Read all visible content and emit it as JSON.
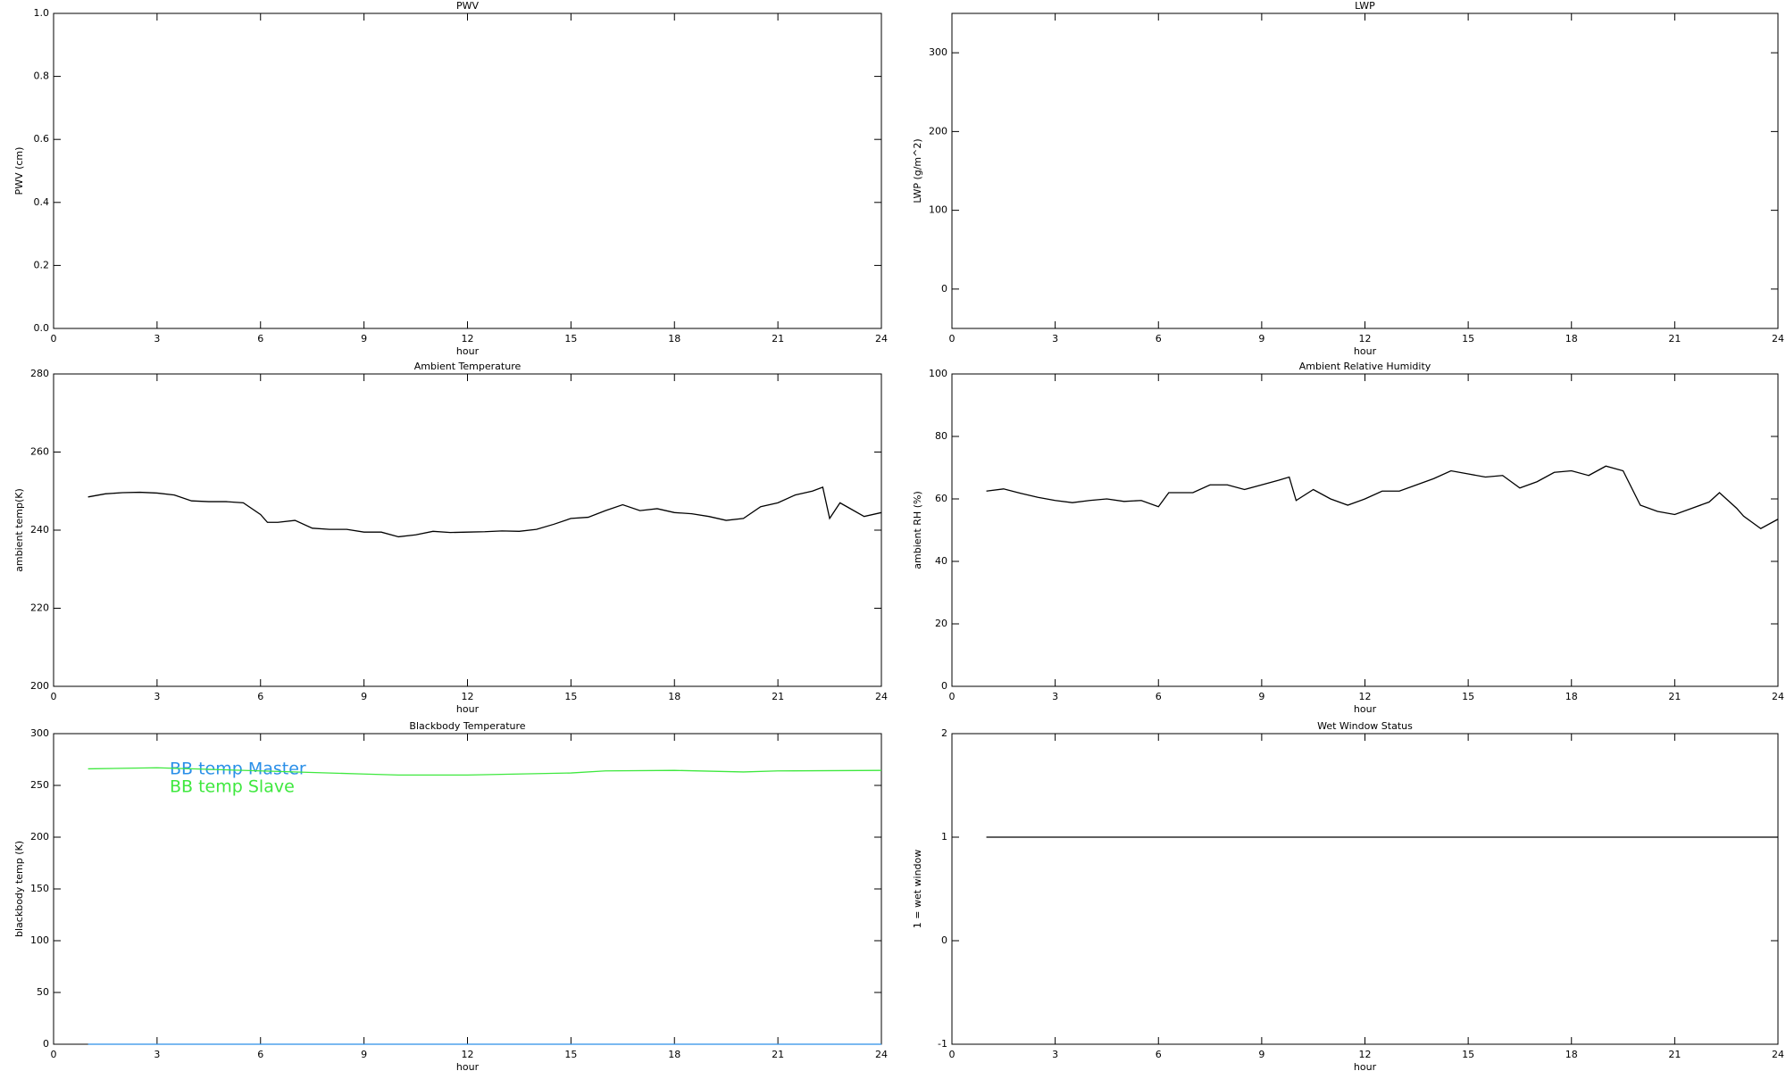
{
  "chart_data": [
    {
      "type": "line",
      "title": "PWV",
      "xlabel": "hour",
      "ylabel": "PWV (cm)",
      "xlim": [
        0,
        24
      ],
      "xticks": [
        0,
        3,
        6,
        9,
        12,
        15,
        18,
        21,
        24
      ],
      "ylim": [
        0,
        1
      ],
      "yticks": [
        {
          "value": 0,
          "label": "0.0"
        },
        {
          "value": 0.2,
          "label": "0.2"
        },
        {
          "value": 0.4,
          "label": "0.4"
        },
        {
          "value": 0.6,
          "label": "0.6"
        },
        {
          "value": 0.8,
          "label": "0.8"
        },
        {
          "value": 1,
          "label": "1.0"
        }
      ]
    },
    {
      "type": "line",
      "title": "LWP",
      "xlabel": "hour",
      "ylabel": "LWP (g/m^2)",
      "xlim": [
        0,
        24
      ],
      "xticks": [
        0,
        3,
        6,
        9,
        12,
        15,
        18,
        21,
        24
      ],
      "ylim": [
        -50,
        350
      ],
      "yticks": [
        0,
        100,
        200,
        300
      ]
    },
    {
      "type": "line",
      "title": "Ambient Temperature",
      "xlabel": "hour",
      "ylabel": "ambient temp(K)",
      "xlim": [
        0,
        24
      ],
      "xticks": [
        0,
        3,
        6,
        9,
        12,
        15,
        18,
        21,
        24
      ],
      "ylim": [
        200,
        280
      ],
      "yticks": [
        200,
        220,
        240,
        260,
        280
      ],
      "x": [
        1,
        1.5,
        2,
        2.5,
        3,
        3.5,
        4,
        4.5,
        5,
        5.5,
        6,
        6.2,
        6.5,
        7,
        7.5,
        8,
        8.5,
        9,
        9.5,
        10,
        10.5,
        11,
        11.5,
        12,
        12.5,
        13,
        13.5,
        14,
        14.5,
        15,
        15.5,
        16,
        16.5,
        17,
        17.5,
        18,
        18.5,
        19,
        19.5,
        20,
        20.5,
        21,
        21.5,
        22,
        22.3,
        22.5,
        22.8,
        23,
        23.5,
        24
      ],
      "series": [
        {
          "color": "#000000",
          "values": [
            248.5,
            249.3,
            249.6,
            249.7,
            249.5,
            249,
            247.5,
            247.3,
            247.3,
            247,
            244,
            242,
            242,
            242.5,
            240.5,
            240.2,
            240.2,
            239.5,
            239.5,
            238.3,
            238.8,
            239.7,
            239.4,
            239.5,
            239.6,
            239.8,
            239.7,
            240.2,
            241.5,
            243,
            243.3,
            245,
            246.5,
            245,
            245.5,
            244.5,
            244.2,
            243.5,
            242.5,
            243,
            246,
            247,
            249,
            250,
            251,
            243,
            247,
            246,
            243.5,
            244.5
          ]
        }
      ]
    },
    {
      "type": "line",
      "title": "Ambient Relative Humidity",
      "xlabel": "hour",
      "ylabel": "ambient RH (%)",
      "xlim": [
        0,
        24
      ],
      "xticks": [
        0,
        3,
        6,
        9,
        12,
        15,
        18,
        21,
        24
      ],
      "ylim": [
        0,
        100
      ],
      "yticks": [
        0,
        20,
        40,
        60,
        80,
        100
      ],
      "x": [
        1,
        1.5,
        2,
        2.5,
        3,
        3.5,
        4,
        4.5,
        5,
        5.5,
        6,
        6.3,
        7,
        7.5,
        8,
        8.5,
        9,
        9.5,
        9.8,
        10,
        10.5,
        11,
        11.5,
        12,
        12.5,
        13,
        13.5,
        14,
        14.5,
        15,
        15.5,
        16,
        16.5,
        17,
        17.5,
        18,
        18.5,
        19,
        19.5,
        20,
        20.5,
        21,
        21.5,
        22,
        22.3,
        22.8,
        23,
        23.5,
        24
      ],
      "series": [
        {
          "color": "#000000",
          "values": [
            62.5,
            63.2,
            61.8,
            60.5,
            59.5,
            58.8,
            59.5,
            60,
            59.2,
            59.5,
            57.5,
            62,
            62,
            64.5,
            64.5,
            63,
            64.5,
            66,
            67,
            59.5,
            63,
            60,
            58,
            60,
            62.5,
            62.5,
            64.5,
            66.5,
            69,
            68,
            67,
            67.5,
            63.5,
            65.5,
            68.5,
            69,
            67.5,
            70.5,
            69,
            58,
            56,
            55,
            57,
            59,
            62,
            57,
            54.5,
            50.5,
            53.5
          ]
        }
      ]
    },
    {
      "type": "line",
      "title": "Blackbody Temperature",
      "xlabel": "hour",
      "ylabel": "blackbody temp (K)",
      "xlim": [
        0,
        24
      ],
      "xticks": [
        0,
        3,
        6,
        9,
        12,
        15,
        18,
        21,
        24
      ],
      "ylim": [
        0,
        300
      ],
      "yticks": [
        0,
        50,
        100,
        150,
        200,
        250,
        300
      ],
      "x": [
        1,
        3,
        6,
        9,
        10,
        12,
        15,
        16,
        18,
        20,
        21,
        24
      ],
      "series": [
        {
          "name": "BB temp Master",
          "color": "#2a8fe8",
          "values": [
            0,
            0,
            0,
            0,
            0,
            0,
            0,
            0,
            0,
            0,
            0,
            0
          ]
        },
        {
          "name": "BB temp Slave",
          "color": "#3ee83e",
          "values": [
            266,
            267,
            264,
            261,
            260,
            260,
            262,
            264,
            264.5,
            263,
            264,
            264.5
          ]
        }
      ]
    },
    {
      "type": "line",
      "title": "Wet Window Status",
      "xlabel": "hour",
      "ylabel": "1 = wet window",
      "xlim": [
        0,
        24
      ],
      "xticks": [
        0,
        3,
        6,
        9,
        12,
        15,
        18,
        21,
        24
      ],
      "ylim": [
        -1,
        2
      ],
      "yticks": [
        -1,
        0,
        1,
        2
      ],
      "x": [
        1,
        24
      ],
      "series": [
        {
          "color": "#000000",
          "values": [
            1,
            1
          ]
        }
      ]
    }
  ]
}
